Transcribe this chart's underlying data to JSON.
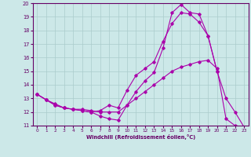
{
  "xlabel": "Windchill (Refroidissement éolien,°C)",
  "xlim": [
    -0.5,
    23.5
  ],
  "ylim": [
    11,
    20
  ],
  "xticks": [
    0,
    1,
    2,
    3,
    4,
    5,
    6,
    7,
    8,
    9,
    10,
    11,
    12,
    13,
    14,
    15,
    16,
    17,
    18,
    19,
    20,
    21,
    22,
    23
  ],
  "yticks": [
    11,
    12,
    13,
    14,
    15,
    16,
    17,
    18,
    19,
    20
  ],
  "background_color": "#cce8e8",
  "line_color": "#aa00aa",
  "grid_color": "#aacccc",
  "line1_x": [
    0,
    1,
    2,
    3,
    4,
    5,
    6,
    7,
    8,
    9,
    10,
    11,
    12,
    13,
    14,
    15,
    16,
    17,
    18,
    19,
    20,
    21,
    22,
    23
  ],
  "line1_y": [
    13.3,
    12.9,
    12.6,
    12.3,
    12.2,
    12.2,
    12.1,
    12.0,
    12.0,
    12.0,
    12.5,
    13.0,
    13.5,
    14.0,
    14.5,
    15.0,
    15.3,
    15.5,
    15.7,
    15.8,
    15.2,
    11.5,
    11.0,
    10.9
  ],
  "line2_x": [
    0,
    1,
    2,
    3,
    4,
    5,
    6,
    7,
    8,
    9,
    10,
    11,
    12,
    13,
    14,
    15,
    16,
    17,
    18,
    19,
    20,
    21,
    22,
    23
  ],
  "line2_y": [
    13.3,
    12.9,
    12.5,
    12.3,
    12.2,
    12.1,
    12.0,
    11.7,
    11.5,
    11.4,
    12.5,
    13.5,
    14.3,
    14.9,
    16.7,
    19.3,
    19.9,
    19.3,
    19.2,
    17.6,
    15.0,
    13.0,
    12.0,
    10.9
  ],
  "line3_x": [
    0,
    1,
    2,
    3,
    4,
    5,
    6,
    7,
    8,
    9,
    10,
    11,
    12,
    13,
    14,
    15,
    16,
    17,
    18,
    19,
    20
  ],
  "line3_y": [
    13.3,
    12.9,
    12.5,
    12.3,
    12.2,
    12.1,
    12.0,
    12.1,
    12.5,
    12.3,
    13.6,
    14.7,
    15.2,
    15.7,
    17.2,
    18.5,
    19.3,
    19.2,
    18.6,
    17.6,
    15.0
  ]
}
